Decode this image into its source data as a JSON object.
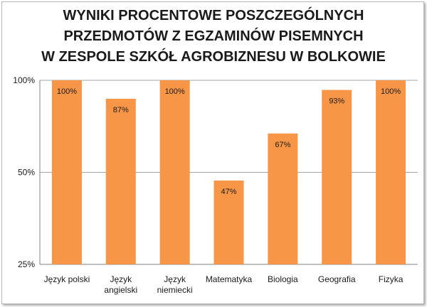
{
  "chart_data": {
    "type": "bar",
    "title_lines": [
      "WYNIKI PROCENTOWE POSZCZEGÓLNYCH",
      "PRZEDMOTÓW Z EGZAMINÓW PISEMNYCH",
      "W ZESPOLE SZKÓŁ AGROBIZNESU W BOLKOWIE"
    ],
    "categories": [
      [
        "Język polski"
      ],
      [
        "Język",
        "angielski"
      ],
      [
        "Język",
        "niemiecki"
      ],
      [
        "Matematyka"
      ],
      [
        "Biologia"
      ],
      [
        "Geografia"
      ],
      [
        "Fizyka"
      ]
    ],
    "values": [
      100,
      87,
      100,
      47,
      67,
      93,
      100
    ],
    "data_labels": [
      "100%",
      "87%",
      "100%",
      "47%",
      "67%",
      "93%",
      "100%"
    ],
    "y_ticks": [
      {
        "value": 25,
        "label": "25%"
      },
      {
        "value": 50,
        "label": "50%"
      },
      {
        "value": 100,
        "label": "100%"
      }
    ],
    "y_scale": "log",
    "ylim": [
      25,
      100
    ],
    "grid": true,
    "legend": "none",
    "colors": {
      "bar": "#f79646",
      "grid": "#a6a6a6",
      "axis": "#808080"
    }
  }
}
